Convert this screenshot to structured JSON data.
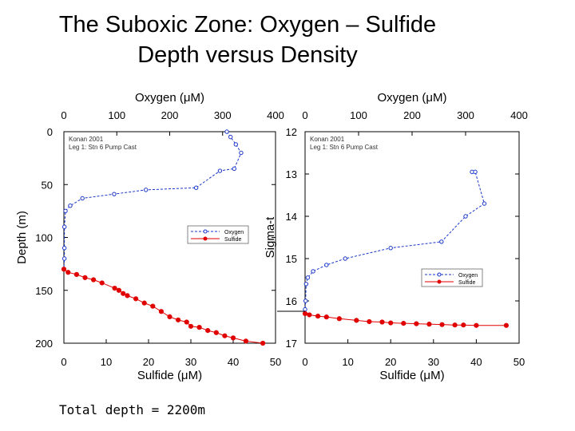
{
  "title_line1": "The Suboxic Zone: Oxygen – Sulfide",
  "title_line2": "Depth versus Density",
  "footer": "Total depth = 2200m",
  "colors": {
    "oxygen": "#1a36c8",
    "sulfide": "#e00000",
    "axis": "#000000"
  },
  "chart_data": [
    {
      "type": "scatter",
      "panel": "left",
      "annotation_lines": [
        "Konan 2001",
        "Leg 1: Stn 6 Pump Cast"
      ],
      "top_axis": {
        "label": "Oxygen (μM)",
        "range": [
          0,
          400
        ],
        "ticks": [
          0,
          100,
          200,
          300,
          400
        ]
      },
      "bottom_axis": {
        "label": "Sulfide (μM)",
        "range": [
          0,
          50
        ],
        "ticks": [
          0,
          10,
          20,
          30,
          40,
          50
        ]
      },
      "y_axis": {
        "label": "Depth (m)",
        "range": [
          0,
          200
        ],
        "inverted": true,
        "ticks": [
          0,
          50,
          100,
          150,
          200
        ]
      },
      "legend": {
        "placement": "center-right",
        "entries": [
          "Oxygen",
          "Sulfide"
        ]
      },
      "series": [
        {
          "name": "Oxygen",
          "axis": "top",
          "points": [
            [
              308,
              0
            ],
            [
              315,
              5
            ],
            [
              325,
              12
            ],
            [
              335,
              20
            ],
            [
              322,
              35
            ],
            [
              295,
              37
            ],
            [
              250,
              53
            ],
            [
              155,
              55
            ],
            [
              95,
              59
            ],
            [
              35,
              63
            ],
            [
              12,
              70
            ],
            [
              3,
              75
            ],
            [
              1,
              90
            ],
            [
              1,
              110
            ],
            [
              1,
              120
            ],
            [
              0,
              130
            ]
          ]
        },
        {
          "name": "Sulfide",
          "axis": "bottom",
          "points": [
            [
              0,
              130
            ],
            [
              1,
              133
            ],
            [
              3,
              135
            ],
            [
              5,
              138
            ],
            [
              7,
              140
            ],
            [
              9,
              143
            ],
            [
              12,
              148
            ],
            [
              13,
              150
            ],
            [
              14,
              153
            ],
            [
              15,
              155
            ],
            [
              17,
              158
            ],
            [
              19,
              162
            ],
            [
              21,
              165
            ],
            [
              23,
              170
            ],
            [
              25,
              175
            ],
            [
              27,
              178
            ],
            [
              29,
              180
            ],
            [
              30,
              184
            ],
            [
              32,
              185
            ],
            [
              34,
              188
            ],
            [
              36,
              190
            ],
            [
              38,
              193
            ],
            [
              40,
              195
            ],
            [
              43,
              198
            ],
            [
              47,
              200
            ]
          ]
        }
      ]
    },
    {
      "type": "scatter",
      "panel": "right",
      "annotation_lines": [
        "Konan 2001",
        "Leg 1: Stn 6 Pump Cast"
      ],
      "top_axis": {
        "label": "Oxygen (μM)",
        "range": [
          0,
          400
        ],
        "ticks": [
          0,
          100,
          200,
          300,
          400
        ]
      },
      "bottom_axis": {
        "label": "Sulfide (μM)",
        "range": [
          0,
          50
        ],
        "ticks": [
          0,
          10,
          20,
          30,
          40,
          50
        ]
      },
      "y_axis": {
        "label": "Sigma-t",
        "range": [
          12,
          17
        ],
        "inverted": true,
        "ticks": [
          12,
          13,
          14,
          15,
          16,
          17
        ]
      },
      "legend": {
        "placement": "center-right",
        "entries": [
          "Oxygen",
          "Sulfide"
        ]
      },
      "series": [
        {
          "name": "Oxygen",
          "axis": "top",
          "points": [
            [
              312,
              12.95
            ],
            [
              318,
              12.95
            ],
            [
              335,
              13.7
            ],
            [
              300,
              14.0
            ],
            [
              255,
              14.6
            ],
            [
              160,
              14.75
            ],
            [
              75,
              15.0
            ],
            [
              40,
              15.15
            ],
            [
              15,
              15.3
            ],
            [
              5,
              15.45
            ],
            [
              2,
              15.6
            ],
            [
              1,
              16.0
            ],
            [
              0,
              16.2
            ]
          ]
        },
        {
          "name": "Sulfide",
          "axis": "bottom",
          "points": [
            [
              0,
              16.3
            ],
            [
              1,
              16.33
            ],
            [
              3,
              16.36
            ],
            [
              5,
              16.38
            ],
            [
              8,
              16.42
            ],
            [
              12,
              16.46
            ],
            [
              15,
              16.49
            ],
            [
              18,
              16.5
            ],
            [
              20,
              16.52
            ],
            [
              23,
              16.53
            ],
            [
              26,
              16.54
            ],
            [
              29,
              16.55
            ],
            [
              32,
              16.56
            ],
            [
              35,
              16.57
            ],
            [
              37,
              16.57
            ],
            [
              40,
              16.58
            ],
            [
              47,
              16.58
            ]
          ]
        }
      ]
    }
  ]
}
